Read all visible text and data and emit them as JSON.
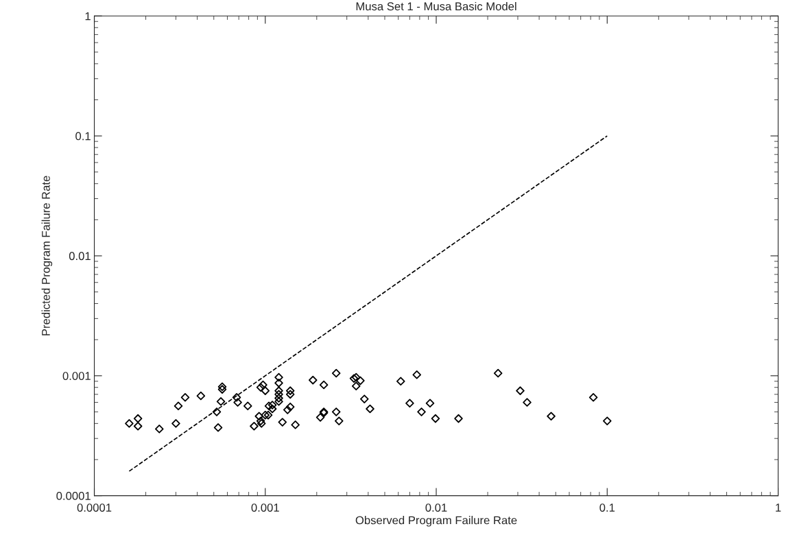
{
  "chart_data": {
    "type": "scatter",
    "title": "Musa Set 1 - Musa Basic Model",
    "xlabel": "Observed Program Failure Rate",
    "ylabel": "Predicted Program Failure Rate",
    "log": "xy",
    "grid": false,
    "xlim": [
      0.0001,
      1
    ],
    "ylim": [
      0.0001,
      1
    ],
    "xticks": [
      {
        "value": 0.0001,
        "label": "0.0001"
      },
      {
        "value": 0.001,
        "label": "0.001"
      },
      {
        "value": 0.01,
        "label": "0.01"
      },
      {
        "value": 0.1,
        "label": "0.1"
      },
      {
        "value": 1,
        "label": "1"
      }
    ],
    "yticks": [
      {
        "value": 0.0001,
        "label": "0.0001"
      },
      {
        "value": 0.001,
        "label": "0.001"
      },
      {
        "value": 0.01,
        "label": "0.01"
      },
      {
        "value": 0.1,
        "label": "0.1"
      },
      {
        "value": 1,
        "label": "1"
      }
    ],
    "series": [
      {
        "color": "#000000",
        "marker": "diamond",
        "x": [
          0.00016,
          0.00018,
          0.00018,
          0.00024,
          0.0003,
          0.00031,
          0.00034,
          0.00042,
          0.00056,
          0.00056,
          0.00055,
          0.00052,
          0.00053,
          0.00068,
          0.00069,
          0.00079,
          0.00097,
          0.00094,
          0.001,
          0.0012,
          0.0012,
          0.0012,
          0.0012,
          0.0012,
          0.0012,
          0.0011,
          0.00105,
          0.0011,
          0.00092,
          0.001,
          0.00104,
          0.00094,
          0.00095,
          0.00086,
          0.0014,
          0.0014,
          0.00135,
          0.0014,
          0.00126,
          0.0015,
          0.0019,
          0.0022,
          0.0026,
          0.0021,
          0.0022,
          0.0022,
          0.0026,
          0.0027,
          0.0033,
          0.0034,
          0.0036,
          0.0034,
          0.0038,
          0.0041,
          0.0062,
          0.0077,
          0.007,
          0.0092,
          0.0082,
          0.0099,
          0.0135,
          0.023,
          0.031,
          0.034,
          0.047,
          0.083,
          0.1
        ],
        "values": [
          0.0004,
          0.00044,
          0.00038,
          0.00036,
          0.0004,
          0.00056,
          0.00066,
          0.00068,
          0.00081,
          0.00077,
          0.00061,
          0.0005,
          0.00037,
          0.00066,
          0.0006,
          0.00056,
          0.00084,
          0.0008,
          0.00075,
          0.00097,
          0.00087,
          0.00075,
          0.0007,
          0.00065,
          0.00061,
          0.00057,
          0.00056,
          0.00053,
          0.00046,
          0.00047,
          0.00047,
          0.00042,
          0.0004,
          0.00038,
          0.00075,
          0.0007,
          0.00052,
          0.00055,
          0.00041,
          0.00039,
          0.00092,
          0.00084,
          0.00105,
          0.00045,
          0.0005,
          0.00049,
          0.0005,
          0.00042,
          0.00095,
          0.00097,
          0.00091,
          0.00082,
          0.00064,
          0.00053,
          0.0009,
          0.00102,
          0.00059,
          0.00059,
          0.0005,
          0.00044,
          0.00044,
          0.00105,
          0.00075,
          0.0006,
          0.00046,
          0.00066,
          0.00042
        ]
      },
      {
        "type": "line",
        "color": "#000000",
        "line_style": "dashed",
        "x": [
          0.00016,
          0.1
        ],
        "values": [
          0.00016,
          0.1
        ]
      }
    ]
  }
}
